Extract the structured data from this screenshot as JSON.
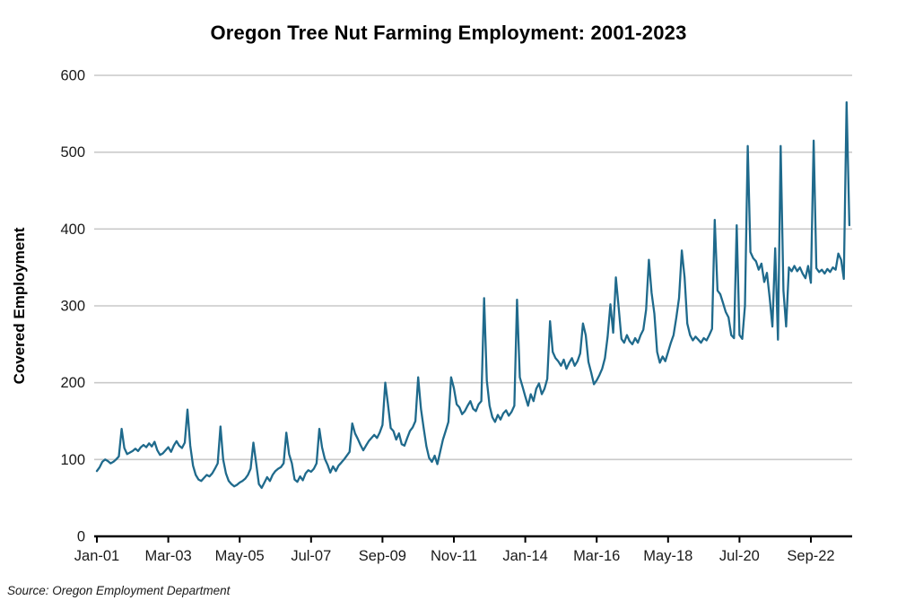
{
  "chart": {
    "title": "Oregon Tree Nut Farming Employment: 2001-2023",
    "y_axis_label": "Covered Employment",
    "source": "Source: Oregon Employment Department"
  },
  "chart_data": {
    "type": "line",
    "title": "Oregon Tree Nut Farming Employment: 2001-2023",
    "xlabel": "",
    "ylabel": "Covered Employment",
    "ylim": [
      0,
      600
    ],
    "y_ticks": [
      0,
      100,
      200,
      300,
      400,
      500,
      600
    ],
    "x_tick_labels": [
      "Jan-01",
      "Mar-03",
      "May-05",
      "Jul-07",
      "Sep-09",
      "Nov-11",
      "Jan-14",
      "Mar-16",
      "May-18",
      "Jul-20",
      "Sep-22"
    ],
    "x_tick_month_index": [
      0,
      26,
      52,
      78,
      104,
      130,
      156,
      182,
      208,
      234,
      260
    ],
    "frequency": "monthly",
    "start": "Jan-2001",
    "end": "Nov-2023",
    "grid": "horizontal",
    "legend_position": "none",
    "line_color": "#1f6a8c",
    "grid_color": "#c9c9c9",
    "axis_color": "#000000",
    "source": "Source: Oregon Employment Department",
    "series": [
      {
        "name": "Covered Employment",
        "values": [
          85,
          90,
          97,
          100,
          98,
          95,
          97,
          100,
          104,
          140,
          115,
          107,
          109,
          111,
          114,
          111,
          116,
          119,
          116,
          121,
          117,
          123,
          112,
          106,
          108,
          112,
          116,
          110,
          118,
          124,
          118,
          115,
          122,
          165,
          118,
          92,
          80,
          74,
          72,
          76,
          80,
          78,
          82,
          88,
          95,
          143,
          100,
          82,
          72,
          68,
          65,
          67,
          70,
          72,
          75,
          80,
          88,
          122,
          95,
          68,
          63,
          70,
          77,
          72,
          80,
          85,
          88,
          90,
          95,
          135,
          107,
          95,
          74,
          71,
          78,
          73,
          82,
          86,
          84,
          88,
          95,
          140,
          116,
          101,
          93,
          83,
          91,
          85,
          92,
          96,
          100,
          105,
          110,
          147,
          134,
          127,
          119,
          112,
          118,
          124,
          128,
          132,
          128,
          135,
          145,
          200,
          172,
          141,
          137,
          126,
          134,
          120,
          118,
          128,
          137,
          142,
          150,
          207,
          166,
          141,
          117,
          102,
          97,
          105,
          94,
          110,
          126,
          137,
          149,
          207,
          193,
          172,
          168,
          159,
          163,
          170,
          176,
          166,
          163,
          172,
          176,
          310,
          203,
          170,
          155,
          149,
          158,
          152,
          160,
          164,
          157,
          162,
          170,
          308,
          207,
          195,
          182,
          170,
          185,
          176,
          192,
          199,
          185,
          192,
          205,
          280,
          240,
          232,
          228,
          222,
          230,
          218,
          226,
          232,
          222,
          228,
          238,
          277,
          262,
          227,
          213,
          198,
          203,
          210,
          218,
          232,
          260,
          302,
          265,
          337,
          298,
          257,
          252,
          262,
          254,
          250,
          258,
          252,
          262,
          269,
          295,
          360,
          317,
          290,
          240,
          226,
          234,
          228,
          240,
          252,
          262,
          285,
          310,
          372,
          337,
          277,
          262,
          255,
          260,
          256,
          252,
          258,
          255,
          262,
          270,
          412,
          320,
          315,
          304,
          292,
          285,
          262,
          258,
          405,
          262,
          257,
          300,
          508,
          370,
          362,
          358,
          347,
          355,
          331,
          343,
          310,
          273,
          375,
          256,
          508,
          320,
          273,
          350,
          345,
          352,
          345,
          350,
          342,
          336,
          352,
          330,
          515,
          349,
          344,
          347,
          342,
          348,
          344,
          350,
          347,
          368,
          360,
          335,
          565,
          405
        ]
      }
    ]
  }
}
